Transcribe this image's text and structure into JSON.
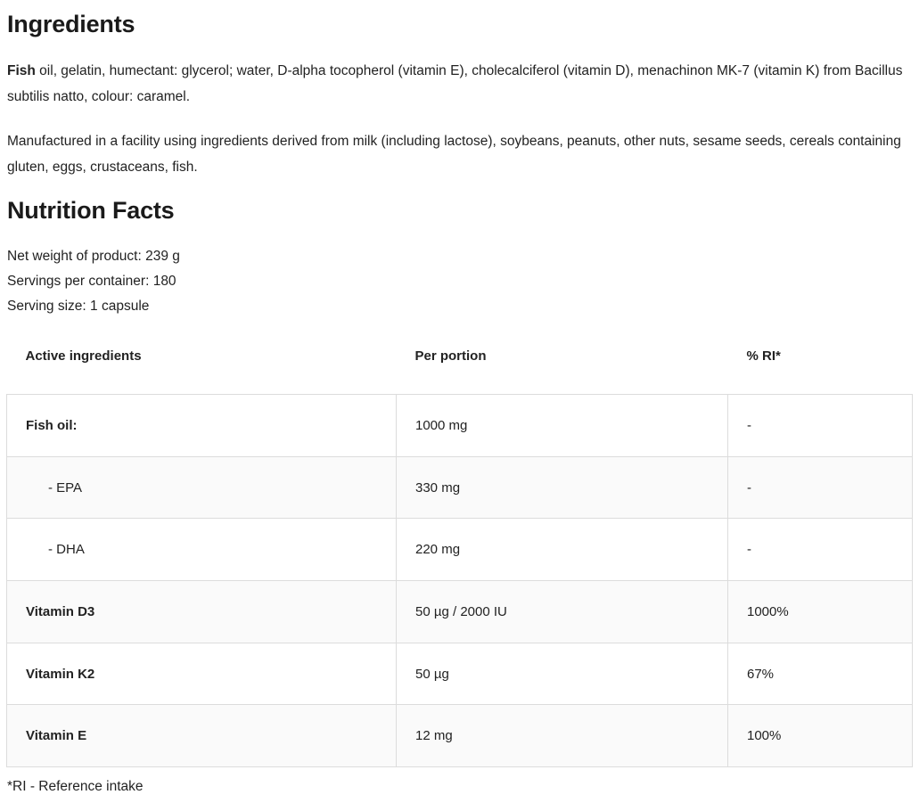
{
  "ingredients": {
    "title": "Ingredients",
    "lead_bold": "Fish",
    "text": " oil, gelatin, humectant: glycerol; water, D-alpha tocopherol (vitamin E), cholecalciferol (vitamin D), menachinon MK-7 (vitamin K) from Bacillus subtilis natto, colour: caramel.",
    "allergens": "Manufactured in a facility using ingredients derived from milk (including lactose), soybeans, peanuts, other nuts, sesame seeds, cereals containing gluten, eggs, crustaceans, fish."
  },
  "nutrition": {
    "title": "Nutrition Facts",
    "net_weight": "Net weight of product: 239 g",
    "servings": "Servings per container: 180",
    "serving_size": "Serving size: 1 capsule",
    "headers": [
      "Active ingredients",
      "Per portion",
      "% RI*"
    ],
    "rows": [
      {
        "name": "Fish oil:",
        "portion": "1000 mg",
        "ri": "-"
      },
      {
        "name": "- EPA",
        "portion": "330 mg",
        "ri": "-"
      },
      {
        "name": "- DHA",
        "portion": "220 mg",
        "ri": "-"
      },
      {
        "name": "Vitamin D3",
        "portion": "50 µg / 2000 IU",
        "ri": "1000%"
      },
      {
        "name": "Vitamin K2",
        "portion": "50 µg",
        "ri": "67%"
      },
      {
        "name": "Vitamin E",
        "portion": "12 mg",
        "ri": "100%"
      }
    ],
    "footnote": "*RI - Reference intake"
  }
}
